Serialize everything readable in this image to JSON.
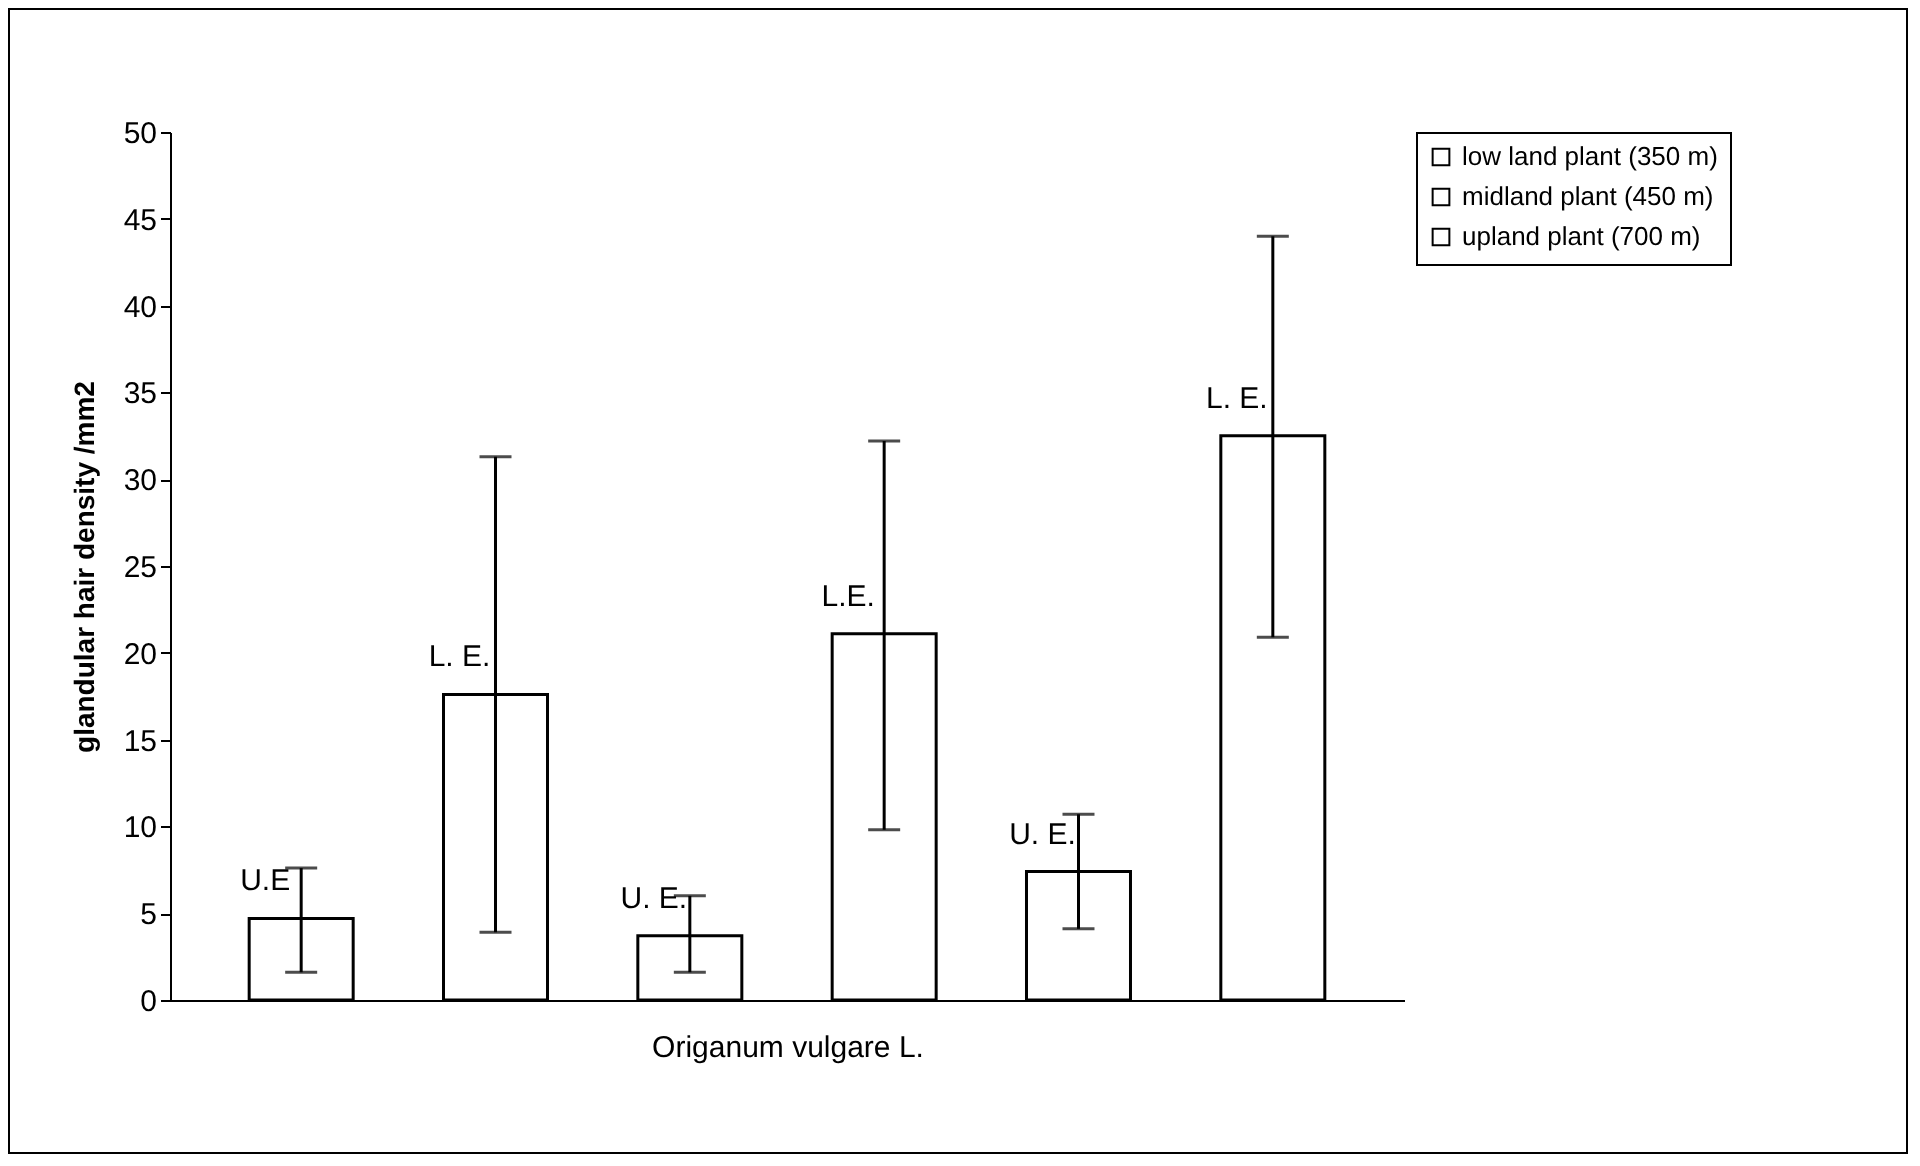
{
  "chart_data": {
    "type": "bar",
    "xlabel": "Origanum vulgare L.",
    "ylabel": "glandular hair density /mm2",
    "categories": [
      null,
      null,
      null,
      null,
      null,
      null
    ],
    "series": [
      {
        "name": "low land plant (350 m)",
        "color": "#ffffff",
        "values": [
          4.7,
          17.6,
          null,
          null,
          null,
          null
        ],
        "errors": [
          [
            1.6,
            7.6
          ],
          [
            3.9,
            31.3
          ],
          null,
          null,
          null,
          null
        ],
        "value_labels": [
          "U.E",
          "L. E.",
          null,
          null,
          null,
          null
        ]
      },
      {
        "name": "midland plant (450 m)",
        "color": "#ffffff",
        "values": [
          null,
          null,
          3.7,
          21.1,
          null,
          null
        ],
        "errors": [
          null,
          null,
          [
            1.6,
            6.0
          ],
          [
            9.8,
            32.2
          ],
          null,
          null
        ],
        "value_labels": [
          null,
          null,
          "U. E.",
          "L.E.",
          null,
          null
        ]
      },
      {
        "name": "upland plant (700 m)",
        "color": "#ffffff",
        "values": [
          null,
          null,
          null,
          null,
          7.4,
          32.5
        ],
        "errors": [
          null,
          null,
          null,
          null,
          [
            4.1,
            10.7
          ],
          [
            20.9,
            44.0
          ]
        ],
        "value_labels": [
          null,
          null,
          null,
          null,
          "U. E.",
          "L. E."
        ]
      }
    ],
    "ylim": [
      0,
      50
    ],
    "yticks": [
      0,
      5,
      10,
      15,
      20,
      25,
      30,
      35,
      40,
      45,
      50
    ],
    "legend": "top right"
  }
}
